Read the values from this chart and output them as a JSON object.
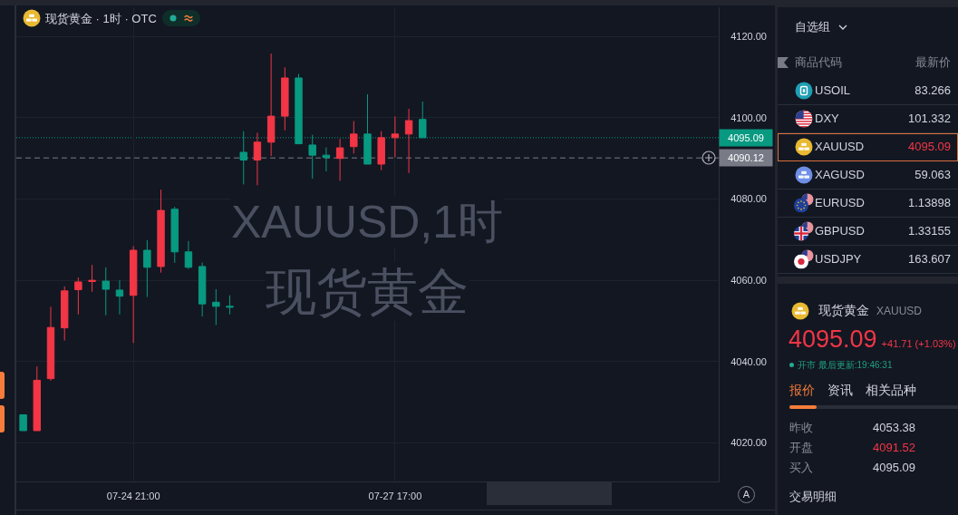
{
  "chart_data": [
    {
      "type": "candlestick",
      "title": "现货黄金 · 1时 · OTC",
      "categories": [
        null,
        null,
        null,
        null,
        null,
        null,
        null,
        null,
        "07-24 21:00",
        null,
        null,
        null,
        null,
        null,
        null,
        null,
        null,
        null,
        null,
        null,
        null,
        null,
        null,
        null,
        null,
        null,
        null,
        "07-27 17:00",
        null,
        null,
        null,
        null,
        null,
        null,
        null,
        null,
        null,
        null,
        null,
        null,
        null,
        null,
        null,
        null,
        null,
        null,
        null,
        null,
        null,
        null,
        null
      ],
      "ohlc": [
        [
          4026.9,
          4026.9,
          4023.0,
          4023.0
        ],
        [
          4023.0,
          4038.8,
          4023.0,
          4035.4
        ],
        [
          4035.8,
          4053.5,
          4035.3,
          4048.4
        ],
        [
          4048.3,
          4058.5,
          4045.2,
          4057.4
        ],
        [
          4057.7,
          4060.7,
          4051.6,
          4059.6
        ],
        [
          4059.7,
          4063.8,
          4057.2,
          4060.0
        ],
        [
          4059.8,
          4063.2,
          4051.4,
          4057.8
        ],
        [
          4057.6,
          4060.0,
          4051.6,
          4056.1
        ],
        [
          4056.3,
          4068.4,
          4044.6,
          4067.4
        ],
        [
          4067.4,
          4069.9,
          4055.9,
          4063.2
        ],
        [
          4063.4,
          4082.3,
          4061.9,
          4077.2
        ],
        [
          4077.5,
          4078.1,
          4064.3,
          4067.0
        ],
        [
          4067.0,
          4069.7,
          4062.8,
          4063.2
        ],
        [
          4063.4,
          4064.4,
          4051.1,
          4054.2
        ],
        [
          4054.6,
          4057.8,
          4049.0,
          4053.6
        ],
        [
          4053.6,
          4056.3,
          4051.6,
          4053.4
        ],
        [
          4091.5,
          4096.7,
          4083.6,
          4089.6
        ],
        [
          4089.6,
          4096.3,
          4083.4,
          4094.0
        ],
        [
          4094.0,
          4115.8,
          4090.6,
          4100.4
        ],
        [
          4100.4,
          4112.4,
          4096.9,
          4109.8
        ],
        [
          4109.8,
          4110.8,
          4093.6,
          4093.6
        ],
        [
          4093.3,
          4095.8,
          4085.0,
          4090.8
        ],
        [
          4090.8,
          4092.7,
          4086.8,
          4090.2
        ],
        [
          4090.0,
          4094.8,
          4084.5,
          4092.6
        ],
        [
          4092.9,
          4099.2,
          4091.2,
          4096.0
        ],
        [
          4096.0,
          4105.8,
          4088.6,
          4088.6
        ],
        [
          4088.6,
          4096.7,
          4087.1,
          4095.1
        ],
        [
          4095.1,
          4100.3,
          4090.2,
          4096.0
        ],
        [
          4096.0,
          4102.2,
          4086.4,
          4099.3
        ],
        [
          4099.6,
          4104.0,
          4095.1,
          4095.1
        ],
        null,
        null,
        null,
        null,
        null,
        null,
        null,
        null,
        null,
        null,
        null,
        null,
        null,
        null,
        null,
        null,
        null,
        null,
        null,
        null,
        null
      ],
      "colors": [
        "#089981",
        "#f23645",
        "#f23645",
        "#f23645",
        "#f23645",
        "#f23645",
        "#089981",
        "#089981",
        "#f23645",
        "#089981",
        "#f23645",
        "#089981",
        "#089981",
        "#089981",
        "#089981",
        "#089981",
        "#089981",
        "#f23645",
        "#f23645",
        "#f23645",
        "#089981",
        "#089981",
        "#089981",
        "#f23645",
        "#f23645",
        "#089981",
        "#f23645",
        "#f23645",
        "#f23645",
        "#089981",
        null,
        null,
        null,
        null,
        null,
        null,
        null,
        null,
        null,
        null,
        null,
        null,
        null,
        null,
        null,
        null,
        null,
        null,
        null,
        null,
        null
      ],
      "ylim": [
        4010.5,
        4127.2
      ],
      "yticks": [
        {
          "value": 4020,
          "label": "4020.00"
        },
        {
          "value": 4040,
          "label": "4040.00"
        },
        {
          "value": 4060,
          "label": "4060.00"
        },
        {
          "value": 4080,
          "label": "4080.00"
        },
        {
          "value": 4100,
          "label": "4100.00"
        },
        {
          "value": 4120,
          "label": "4120.00"
        }
      ],
      "grid": true,
      "ref_lines": [
        {
          "axis": "y",
          "value": 4095.09,
          "label": "4095.09",
          "color": "#089981",
          "line_style": "dotted"
        },
        {
          "axis": "y",
          "value": 4090.12,
          "label": "4090.12",
          "color": "#787b86",
          "line_style": "dashed"
        }
      ],
      "annotations": [
        "XAUUSD,1时",
        "现货黄金",
        "A"
      ]
    },
    {
      "type": "other",
      "title": "自选组",
      "annotations": [
        "商品代码",
        "最新价",
        "USOIL",
        "83.266",
        "DXY",
        "101.332",
        "XAUUSD",
        "4095.09",
        "XAGUSD",
        "59.063",
        "EURUSD",
        "1.13898",
        "GBPUSD",
        "1.33155",
        "USDJPY",
        "163.607"
      ]
    },
    {
      "type": "other",
      "title": "现货黄金",
      "subtitle": "XAUUSD",
      "annotations": [
        "4095.09",
        "+41.71 (+1.03%)",
        "开市 最后更新:19:46:31",
        "报价",
        "资讯",
        "相关品种",
        "昨收",
        "4053.38",
        "开盘",
        "4091.52",
        "买入",
        "4095.09",
        "交易明细"
      ]
    }
  ]
}
